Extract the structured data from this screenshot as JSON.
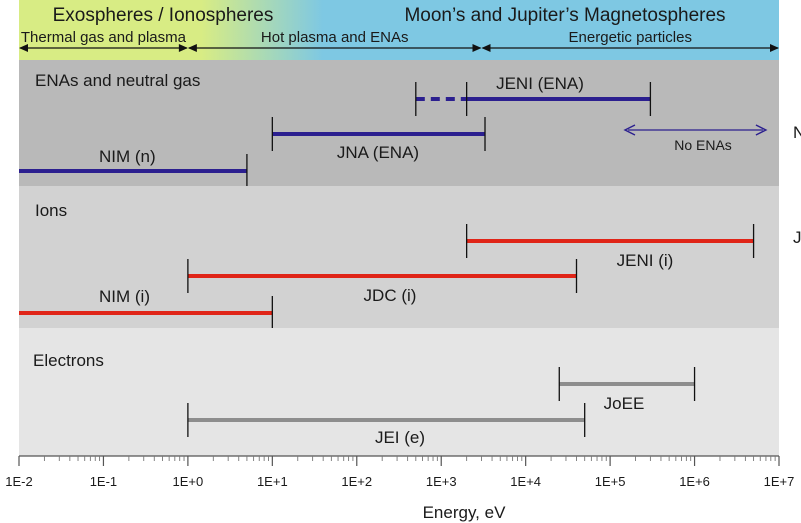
{
  "chart_data": {
    "type": "range-bar",
    "xlabel": "Energy, eV",
    "x_scale": "log",
    "xlim": [
      0.01,
      10000000
    ],
    "x_ticks": [
      "1E-2",
      "1E-1",
      "1E+0",
      "1E+1",
      "1E+2",
      "1E+3",
      "1E+4",
      "1E+5",
      "1E+6",
      "1E+7"
    ],
    "headers": {
      "top": [
        {
          "text": "Exospheres / Ionospheres",
          "color": "#d8ec84"
        },
        {
          "text": "Moon’s and Jupiter’s Magnetospheres",
          "color": "#7ec8e3"
        }
      ],
      "ranges": [
        {
          "text": "Thermal gas and plasma",
          "from": 0.01,
          "to": 1
        },
        {
          "text": "Hot plasma and ENAs",
          "from": 1,
          "to": 3000
        },
        {
          "text": "Energetic particles",
          "from": 3000,
          "to": 10000000
        }
      ]
    },
    "sections": [
      {
        "label": "ENAs and neutral gas",
        "bg": "#b9b9b9",
        "color": "#2b1f8f",
        "bars": [
          {
            "label": "NIM (n)",
            "from": 0.01,
            "to": 5
          },
          {
            "label": "JNA (ENA)",
            "from": 10,
            "to": 3300
          },
          {
            "label": "JENI (ENA)",
            "from": 2000,
            "to": 300000,
            "dashed_from": 500
          }
        ],
        "annotation": {
          "label": "No ENAs",
          "from": 150000,
          "to": 7000000
        }
      },
      {
        "label": "Ions",
        "bg": "#d2d2d2",
        "color": "#e02518",
        "bars": [
          {
            "label": "NIM (i)",
            "from": 0.01,
            "to": 10
          },
          {
            "label": "JDC (i)",
            "from": 1,
            "to": 40000
          },
          {
            "label": "JENI (i)",
            "from": 2000,
            "to": 5000000
          }
        ]
      },
      {
        "label": "Electrons",
        "bg": "#e5e5e5",
        "color": "#8d8d8d",
        "bars": [
          {
            "label": "JEI (e)",
            "from": 1,
            "to": 50000
          },
          {
            "label": "JoEE",
            "from": 25000,
            "to": 1000000
          }
        ]
      }
    ],
    "right_edge_labels": [
      "N",
      "J"
    ]
  }
}
